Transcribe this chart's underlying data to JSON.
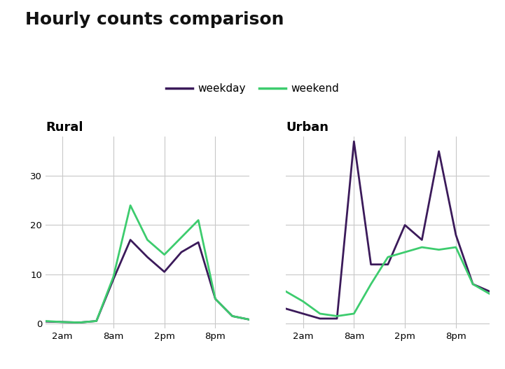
{
  "title": "Hourly counts comparison",
  "title_fontsize": 18,
  "title_fontweight": "bold",
  "background_color": "#ffffff",
  "weekday_color": "#3b1a5a",
  "weekend_color": "#3dcc6e",
  "line_width": 2.0,
  "legend_labels": [
    "weekday",
    "weekend"
  ],
  "hours": [
    0,
    2,
    4,
    6,
    8,
    10,
    12,
    14,
    16,
    18,
    20,
    22,
    24
  ],
  "xtick_labels": [
    "2am",
    "8am",
    "2pm",
    "8pm"
  ],
  "xtick_positions": [
    2,
    8,
    14,
    20
  ],
  "yticks": [
    0,
    10,
    20,
    30
  ],
  "ylim": [
    -1,
    38
  ],
  "rural_weekday": [
    0.4,
    0.3,
    0.2,
    0.5,
    9.0,
    17.0,
    13.5,
    10.5,
    14.5,
    16.5,
    5.0,
    1.5,
    0.8
  ],
  "rural_weekend": [
    0.5,
    0.3,
    0.2,
    0.5,
    9.5,
    24.0,
    17.0,
    14.0,
    17.5,
    21.0,
    5.0,
    1.5,
    0.8
  ],
  "urban_weekday": [
    3.0,
    2.0,
    1.0,
    1.0,
    37.0,
    12.0,
    12.0,
    20.0,
    17.0,
    35.0,
    18.0,
    8.0,
    6.5
  ],
  "urban_weekend": [
    6.5,
    4.5,
    2.0,
    1.5,
    2.0,
    8.0,
    13.5,
    14.5,
    15.5,
    15.0,
    15.5,
    8.0,
    6.0
  ],
  "subplot_titles": [
    "Rural",
    "Urban"
  ],
  "subplot_title_fontsize": 13,
  "subplot_title_fontweight": "bold"
}
